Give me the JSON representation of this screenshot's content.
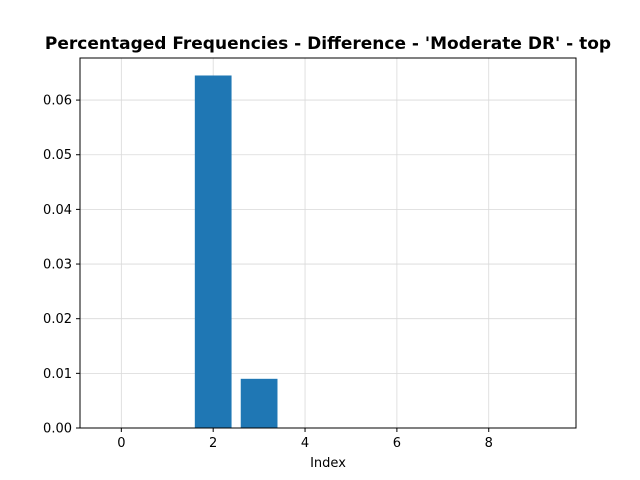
{
  "chart_data": {
    "type": "bar",
    "title": "Percentaged Frequencies - Difference - 'Moderate DR' - top",
    "xlabel": "Index",
    "ylabel": "",
    "x": [
      0,
      1,
      2,
      3,
      4,
      5,
      6,
      7,
      8,
      9
    ],
    "values": [
      0,
      0,
      0.0645,
      0.009,
      0,
      0,
      0,
      0,
      0,
      0
    ],
    "xlim": [
      -0.9,
      9.9
    ],
    "ylim": [
      0,
      0.0677
    ],
    "xticks": [
      0,
      2,
      4,
      6,
      8
    ],
    "xtick_labels": [
      "0",
      "2",
      "4",
      "6",
      "8"
    ],
    "yticks": [
      0,
      0.01,
      0.02,
      0.03,
      0.04,
      0.05,
      0.06
    ],
    "ytick_labels": [
      "0.00",
      "0.01",
      "0.02",
      "0.03",
      "0.04",
      "0.05",
      "0.06"
    ],
    "grid": true,
    "bar_color": "#1f77b4",
    "grid_color": "#d9d9d9"
  }
}
